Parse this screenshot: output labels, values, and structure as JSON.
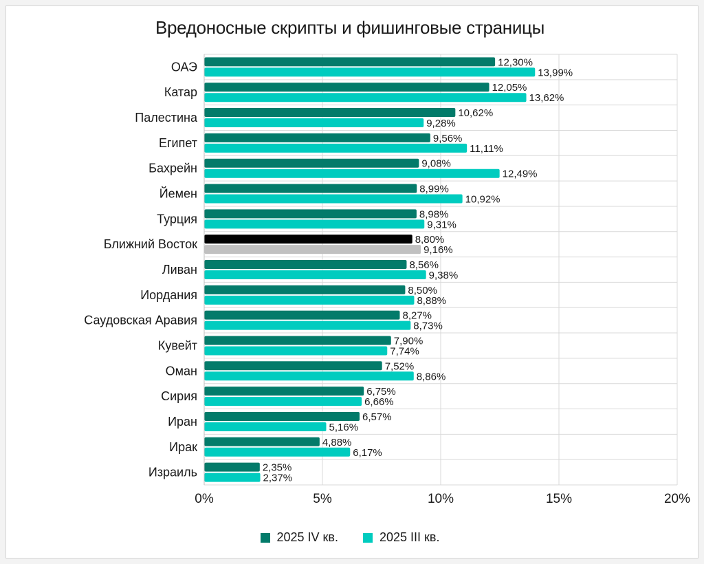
{
  "chart_data": {
    "type": "bar",
    "orientation": "horizontal",
    "title": "Вредоносные скрипты и фишинговые страницы",
    "categories": [
      "ОАЭ",
      "Катар",
      "Палестина",
      "Египет",
      "Бахрейн",
      "Йемен",
      "Турция",
      "Ближний Восток",
      "Ливан",
      "Иордания",
      "Саудовская Аравия",
      "Кувейт",
      "Оман",
      "Сирия",
      "Иран",
      "Ирак",
      "Израиль"
    ],
    "highlight_category": "Ближний Восток",
    "series": [
      {
        "name": "2025 IV кв.",
        "color": "#037b6a",
        "highlight_color": "#000000",
        "values": [
          12.3,
          12.05,
          10.62,
          9.56,
          9.08,
          8.99,
          8.98,
          8.8,
          8.56,
          8.5,
          8.27,
          7.9,
          7.52,
          6.75,
          6.57,
          4.88,
          2.35
        ],
        "labels": [
          "12,30%",
          "12,05%",
          "10,62%",
          "9,56%",
          "9,08%",
          "8,99%",
          "8,98%",
          "8,80%",
          "8,56%",
          "8,50%",
          "8,27%",
          "7,90%",
          "7,52%",
          "6,75%",
          "6,57%",
          "4,88%",
          "2,35%"
        ]
      },
      {
        "name": "2025 III кв.",
        "color": "#00ccbf",
        "highlight_color": "#c0c0c0",
        "values": [
          13.99,
          13.62,
          9.28,
          11.11,
          12.49,
          10.92,
          9.31,
          9.16,
          9.38,
          8.88,
          8.73,
          7.74,
          8.86,
          6.66,
          5.16,
          6.17,
          2.37
        ],
        "labels": [
          "13,99%",
          "13,62%",
          "9,28%",
          "11,11%",
          "12,49%",
          "10,92%",
          "9,31%",
          "9,16%",
          "9,38%",
          "8,88%",
          "8,73%",
          "7,74%",
          "8,86%",
          "6,66%",
          "5,16%",
          "6,17%",
          "2,37%"
        ]
      }
    ],
    "xlim": [
      0,
      20
    ],
    "xticks": [
      0,
      5,
      10,
      15,
      20
    ],
    "xtick_labels": [
      "0%",
      "5%",
      "10%",
      "15%",
      "20%"
    ],
    "grid": true,
    "legend_position": "bottom"
  }
}
